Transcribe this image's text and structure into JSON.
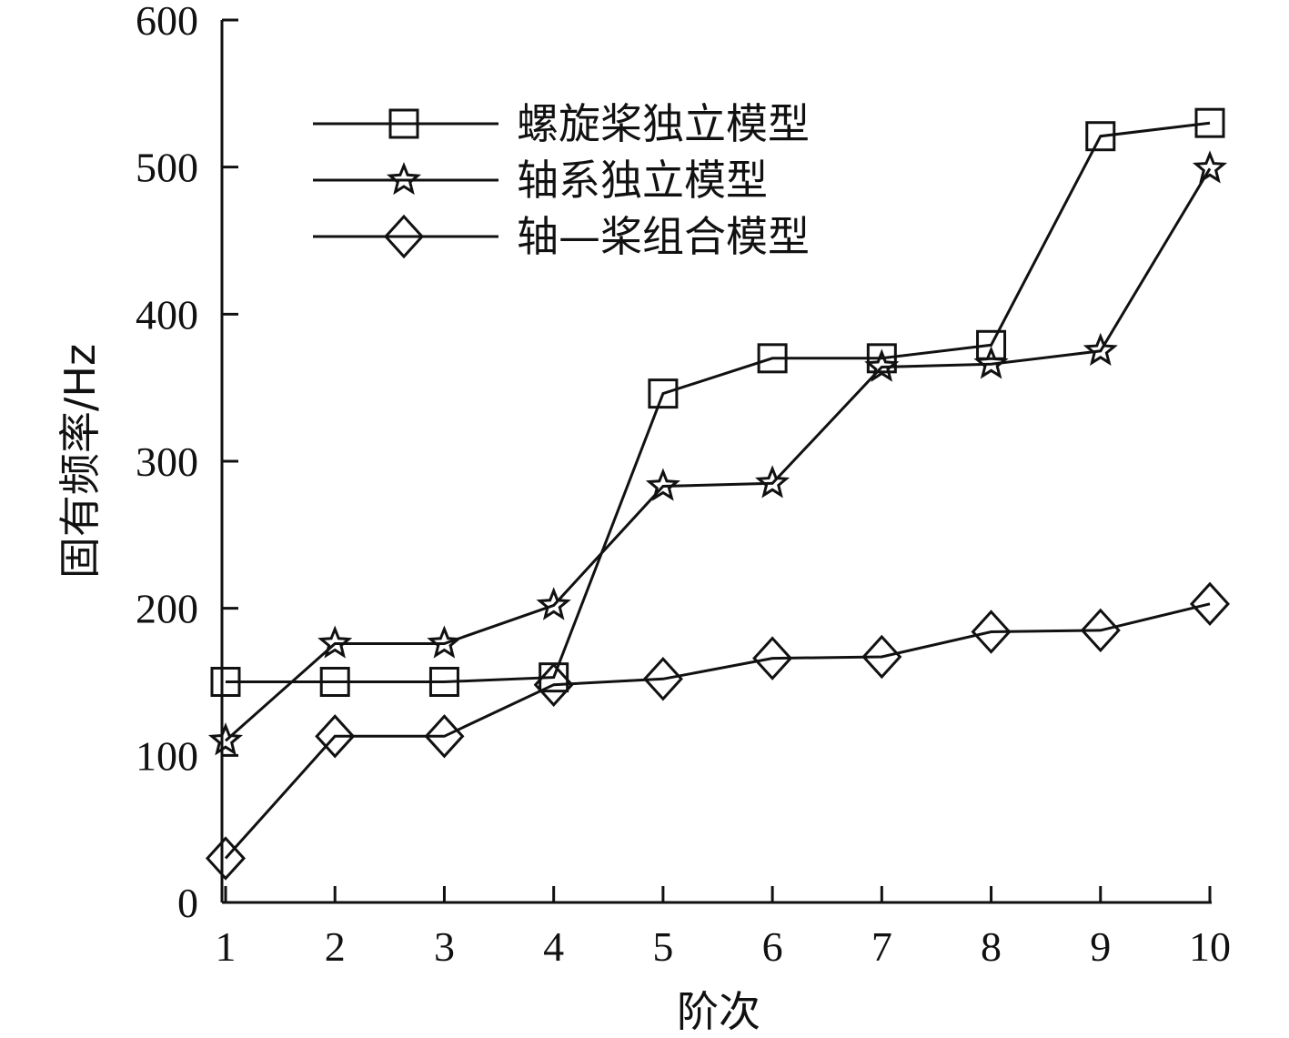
{
  "chart_data": {
    "type": "line",
    "xlabel": "阶次",
    "ylabel": "固有频率/Hz",
    "x": [
      1,
      2,
      3,
      4,
      5,
      6,
      7,
      8,
      9,
      10
    ],
    "xticks": [
      "1",
      "2",
      "3",
      "4",
      "5",
      "6",
      "7",
      "8",
      "9",
      "10"
    ],
    "ylim": [
      0,
      600
    ],
    "yticks": [
      "0",
      "100",
      "200",
      "300",
      "400",
      "500",
      "600"
    ],
    "ytick_values": [
      0,
      100,
      200,
      300,
      400,
      500,
      600
    ],
    "grid": false,
    "legend_position": "top-left",
    "series": [
      {
        "name": "螺旋桨独立模型",
        "marker": "square",
        "values": [
          150,
          150,
          150,
          153,
          346,
          370,
          370,
          379,
          521,
          530
        ]
      },
      {
        "name": "轴系独立模型",
        "marker": "star",
        "values": [
          110,
          176,
          176,
          202,
          283,
          285,
          364,
          366,
          375,
          499
        ]
      },
      {
        "name": "轴—桨组合模型",
        "marker": "diamond",
        "values": [
          30,
          113,
          113,
          148,
          152,
          166,
          167,
          184,
          185,
          203
        ]
      }
    ]
  }
}
